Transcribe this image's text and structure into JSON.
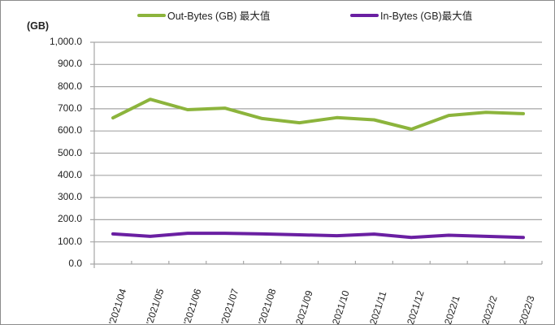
{
  "chart_data": {
    "type": "line",
    "title": "",
    "xlabel": "",
    "ylabel": "(GB)",
    "ylim": [
      0,
      1000
    ],
    "yticks": [
      "0.0",
      "100.0",
      "200.0",
      "300.0",
      "400.0",
      "500.0",
      "600.0",
      "700.0",
      "800.0",
      "900.0",
      "1,000.0"
    ],
    "grid": true,
    "legend_position": "top",
    "categories": [
      "'2021/04",
      "'2021/05",
      "'2021/06",
      "'2021/07",
      "'2021/08",
      "2021/09",
      "2021/10",
      "2021/11",
      "2021/12",
      "2022/1",
      "2022/2",
      "2022/3"
    ],
    "series": [
      {
        "name": "Out-Bytes (GB) 最大值",
        "color": "#8cb43c",
        "values": [
          659,
          743,
          696,
          703,
          656,
          637,
          660,
          650,
          608,
          670,
          684,
          678
        ]
      },
      {
        "name": "In-Bytes (GB)最大值",
        "color": "#6a1fa2",
        "values": [
          136,
          125,
          139,
          139,
          136,
          132,
          128,
          135,
          120,
          130,
          125,
          120
        ]
      }
    ]
  },
  "legend": {
    "out_label": "Out-Bytes (GB) 最大值",
    "in_label": "In-Bytes (GB)最大值"
  },
  "axis": {
    "unit_label": "(GB)"
  }
}
